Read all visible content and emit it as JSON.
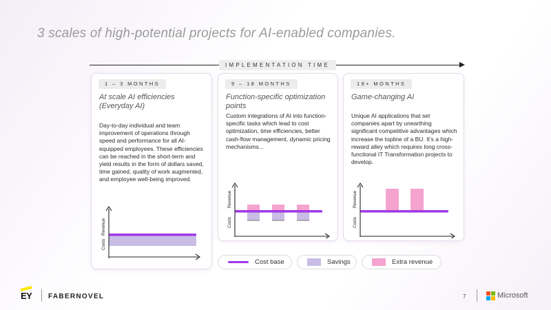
{
  "slide": {
    "title": "3 scales of high-potential projects for AI-enabled companies.",
    "timeline_label": "IMPLEMENTATION TIME",
    "page_number": "7"
  },
  "cards": [
    {
      "badge": "1 – 3  MONTHS",
      "title": "At scale AI efficiencies (Everyday AI)",
      "text": "Day-to-day individual and team improvement of operations through speed and performance for all AI-equipped employees. These efficiencies can be reached in the short-term and yield results in the form of dollars saved, time gained, quality of work augmented, and employee well-being improved.",
      "chart": {
        "revenue_label": "Revenue",
        "costs_label": "Costs",
        "pattern": "savings"
      }
    },
    {
      "badge": "9 – 18  MONTHS",
      "title": "Function-specific optimization points",
      "text": "Custom integrations of AI into function-specific tasks which lead to cost optimization, time efficiencies, better cash-flow management, dynamic pricing mechanisms...",
      "chart": {
        "revenue_label": "Revenue",
        "costs_label": "Costs",
        "pattern": "savings-and-revenue"
      }
    },
    {
      "badge": "18+  MONTHS",
      "title": "Game-changing AI",
      "text": "Unique AI applications that set companies apart by unearthing significant competitive advantages which increase the topline of a BU. It’s a high-reward alley which requires long cross-functional IT Transformation projects to develop.",
      "chart": {
        "revenue_label": "Revenue",
        "costs_label": "Costs",
        "pattern": "extra-revenue"
      }
    }
  ],
  "legend": [
    {
      "label": "Cost base",
      "type": "line",
      "color": "#a23ae6"
    },
    {
      "label": "Savings",
      "type": "box",
      "color": "#c9bde6"
    },
    {
      "label": "Extra revenue",
      "type": "box",
      "color": "#f5a3cf"
    }
  ],
  "footer": {
    "ey_label": "EY",
    "partner_label": "FABERNOVEL",
    "microsoft_label": "Microsoft"
  },
  "colors": {
    "cost_base": "#a23ae6",
    "savings": "#c9bde6",
    "extra_revenue": "#f5a3cf",
    "ms_red": "#f25022",
    "ms_green": "#7fba00",
    "ms_blue": "#00a4ef",
    "ms_yellow": "#ffb900"
  }
}
